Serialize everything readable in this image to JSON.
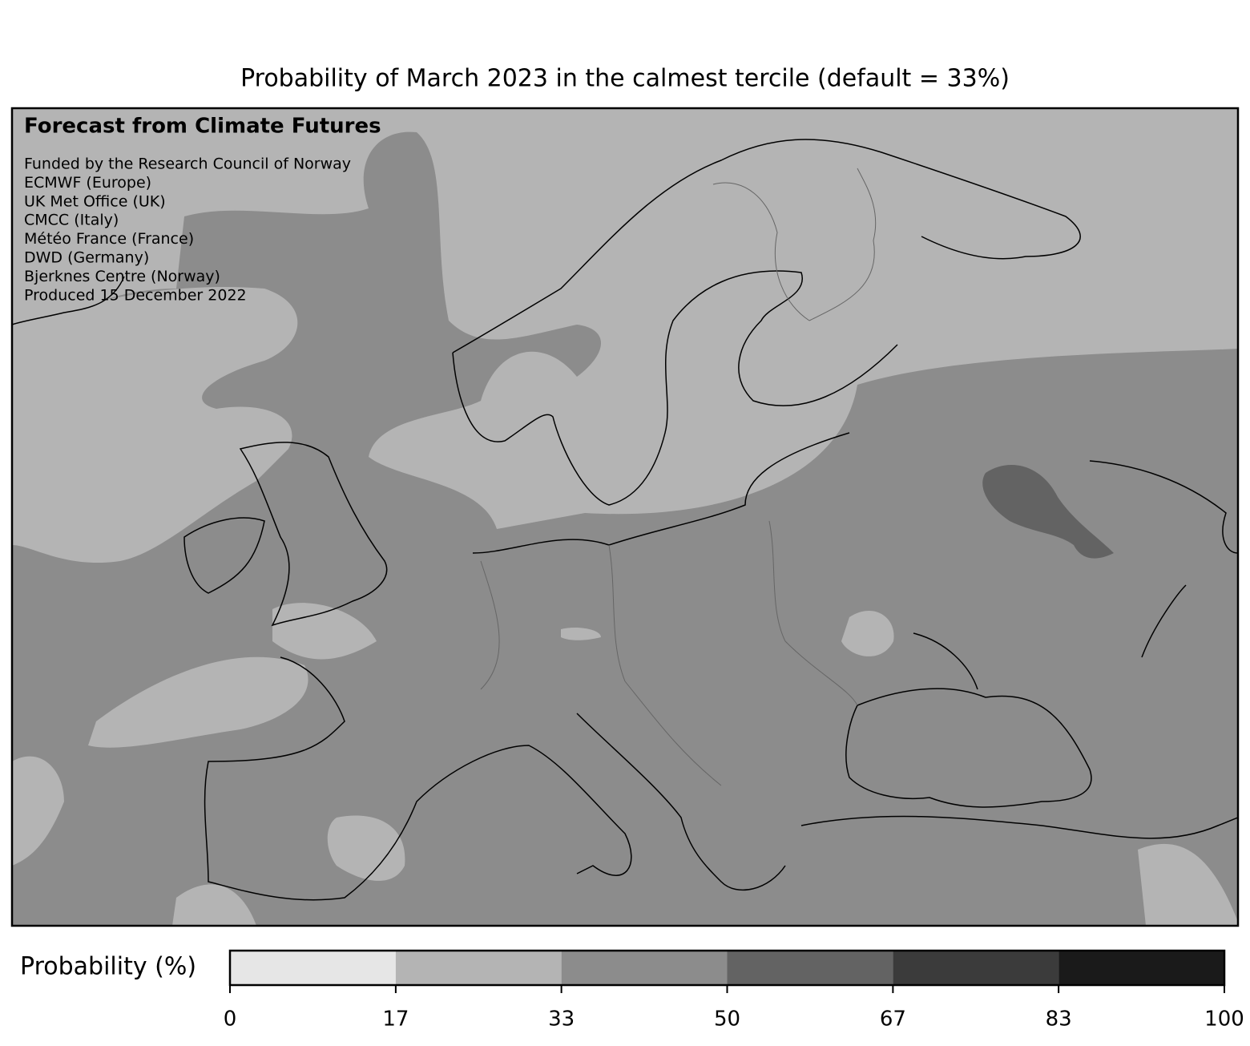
{
  "title": "Probability of March 2023 in the calmest tercile (default = 33%)",
  "annotations": {
    "heading": "Forecast from Climate Futures",
    "lines": [
      "Funded by the Research Council of Norway",
      "ECMWF (Europe)",
      "UK Met Office (UK)",
      "CMCC (Italy)",
      "Météo France (France)",
      "DWD (Germany)",
      "Bjerknes Centre (Norway)",
      "Produced 15 December 2022"
    ]
  },
  "colorbar": {
    "label": "Probability (%)",
    "bins": [
      0,
      16.67,
      33.33,
      50,
      66.67,
      83.33,
      100
    ],
    "colors": [
      "#e6e6e6",
      "#b4b4b4",
      "#8c8c8c",
      "#636363",
      "#3b3b3b",
      "#1a1a1a"
    ],
    "xlim": [
      0,
      100
    ],
    "xticks": [
      0,
      {
        "value": 16.67,
        "label": "17"
      },
      {
        "value": 33.33,
        "label": "33"
      },
      50,
      {
        "value": 66.67,
        "label": "67"
      },
      {
        "value": 83.33,
        "label": "83"
      },
      100
    ]
  }
}
